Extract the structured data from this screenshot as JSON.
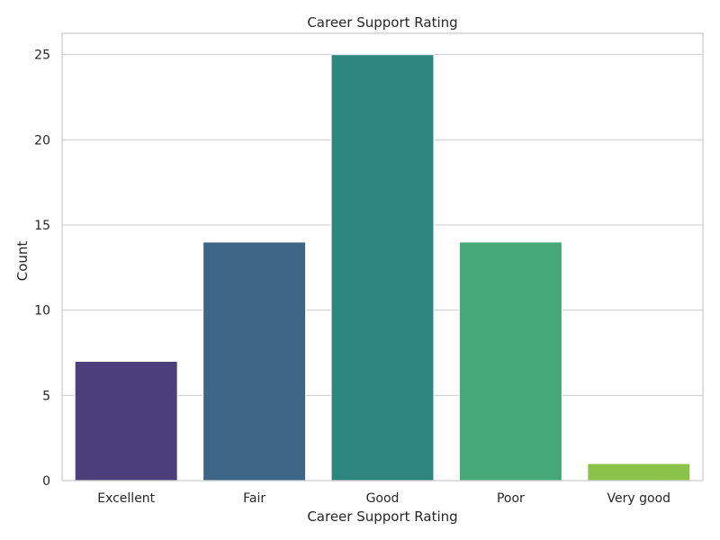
{
  "chart_data": {
    "type": "bar",
    "title": "Career Support Rating",
    "xlabel": "Career Support Rating",
    "ylabel": "Count",
    "categories": [
      "Excellent",
      "Fair",
      "Good",
      "Poor",
      "Very good"
    ],
    "values": [
      7,
      14,
      25,
      14,
      1
    ],
    "colors": [
      "#4a3f7a",
      "#3d6585",
      "#2d8680",
      "#45a877",
      "#8bc34a"
    ],
    "ylim": [
      0,
      26.25
    ],
    "yticks": [
      0,
      5,
      10,
      15,
      20,
      25
    ],
    "grid": true,
    "legend": "none"
  }
}
